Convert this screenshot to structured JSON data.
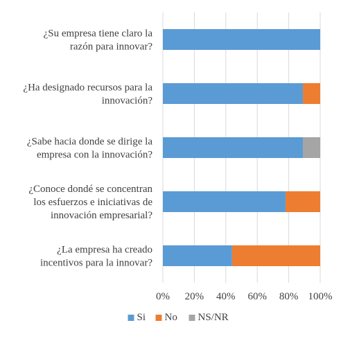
{
  "chart_data": {
    "type": "bar",
    "orientation": "horizontal",
    "stacked": "percent",
    "categories": [
      [
        "¿Su empresa tiene claro la",
        "razón para innovar?"
      ],
      [
        "¿Ha designado recursos para la",
        "innovación?"
      ],
      [
        "¿Sabe hacia donde se dirige la",
        "empresa con la innovación?"
      ],
      [
        "¿Conoce dondé se concentran",
        "los esfuerzos e iniciativas de",
        "innovación empresarial?"
      ],
      [
        "¿La empresa ha creado",
        "incentivos para la innovar?"
      ]
    ],
    "series": [
      {
        "name": "Si",
        "color": "#5b9bd5",
        "values": [
          100,
          89,
          89,
          78,
          44
        ]
      },
      {
        "name": "No",
        "color": "#ed7d31",
        "values": [
          0,
          11,
          0,
          22,
          56
        ]
      },
      {
        "name": "NS/NR",
        "color": "#a5a5a5",
        "values": [
          0,
          0,
          11,
          0,
          0
        ]
      }
    ],
    "xlim": [
      0,
      100
    ],
    "x_ticks": [
      "0%",
      "20%",
      "40%",
      "60%",
      "80%",
      "100%"
    ],
    "grid": true,
    "legend_position": "bottom",
    "title": "",
    "xlabel": "",
    "ylabel": ""
  }
}
